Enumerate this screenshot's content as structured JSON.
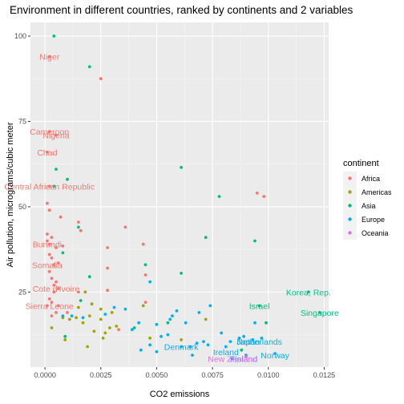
{
  "chart_data": {
    "type": "scatter",
    "title": "Environment in different countries, ranked by continents and 2 variables",
    "xlabel": "CO2 emissions",
    "ylabel": "Air pollution, micrograms/cubic meter",
    "xlim": [
      -0.00065,
      0.0127
    ],
    "ylim": [
      3.0,
      104.0
    ],
    "x_ticks": [
      0.0,
      0.0025,
      0.005,
      0.0075,
      0.01,
      0.0125
    ],
    "x_tick_labels": [
      "0.0000",
      "0.0025",
      "0.0050",
      "0.0075",
      "0.0100",
      "0.0125"
    ],
    "y_ticks": [
      25,
      50,
      75,
      100
    ],
    "y_tick_labels": [
      "25",
      "50",
      "75",
      "100"
    ],
    "grid": true,
    "legend": {
      "title": "continent",
      "position": "right",
      "entries": [
        {
          "name": "Africa",
          "color": "#F8766D"
        },
        {
          "name": "Americas",
          "color": "#A3A500"
        },
        {
          "name": "Asia",
          "color": "#00BF7D"
        },
        {
          "name": "Europe",
          "color": "#00B0F6"
        },
        {
          "name": "Oceania",
          "color": "#E76BF3"
        }
      ]
    },
    "series": [
      {
        "name": "Africa",
        "color": "#F8766D",
        "points": [
          [
            0.0002,
            94.0
          ],
          [
            0.0025,
            87.5
          ],
          [
            0.0002,
            72.0
          ],
          [
            0.0005,
            71.0
          ],
          [
            0.0001,
            66.0
          ],
          [
            0.0002,
            56.0
          ],
          [
            0.0001,
            51.0
          ],
          [
            0.0002,
            49.0
          ],
          [
            0.0007,
            47.0
          ],
          [
            0.0015,
            45.5
          ],
          [
            0.0016,
            43.0
          ],
          [
            0.0036,
            44.0
          ],
          [
            0.0001,
            42.0
          ],
          [
            0.0003,
            41.0
          ],
          [
            0.0002,
            39.0
          ],
          [
            0.0005,
            38.0
          ],
          [
            0.0008,
            38.5
          ],
          [
            0.0044,
            39.0
          ],
          [
            0.0028,
            38.0
          ],
          [
            0.0003,
            35.0
          ],
          [
            0.0004,
            33.0
          ],
          [
            0.0006,
            33.5
          ],
          [
            0.0028,
            32.0
          ],
          [
            0.0002,
            31.0
          ],
          [
            0.0003,
            29.0
          ],
          [
            0.0005,
            28.0
          ],
          [
            0.0006,
            26.0
          ],
          [
            0.0004,
            25.0
          ],
          [
            0.0002,
            23.0
          ],
          [
            0.0003,
            22.0
          ],
          [
            0.0001,
            21.0
          ],
          [
            0.0005,
            19.0
          ],
          [
            0.0003,
            18.0
          ],
          [
            0.0015,
            25.0
          ],
          [
            0.0028,
            25.5
          ],
          [
            0.0045,
            22.0
          ],
          [
            0.001,
            19.0
          ],
          [
            0.0033,
            14.0
          ],
          [
            0.0045,
            30.0
          ],
          [
            0.0095,
            54.0
          ],
          [
            0.0098,
            53.0
          ],
          [
            0.0001,
            40.0
          ],
          [
            0.0002,
            36.0
          ],
          [
            0.0004,
            27.0
          ],
          [
            0.0006,
            21.0
          ]
        ],
        "labels": [
          {
            "text": "Niger",
            "x": 0.0002,
            "y": 94.0
          },
          {
            "text": "Cameroon",
            "x": 0.0002,
            "y": 72.0
          },
          {
            "text": "Nigeria",
            "x": 0.0005,
            "y": 71.0
          },
          {
            "text": "Chad",
            "x": 0.0001,
            "y": 66.0
          },
          {
            "text": "Central African Republic",
            "x": 0.0002,
            "y": 56.0
          },
          {
            "text": "Burundi",
            "x": 0.0001,
            "y": 39.0
          },
          {
            "text": "Somalia",
            "x": 0.0001,
            "y": 33.0
          },
          {
            "text": "Cote d'Ivoire",
            "x": 0.0005,
            "y": 26.0
          },
          {
            "text": "Sierra Leone",
            "x": 0.0002,
            "y": 21.0
          }
        ]
      },
      {
        "name": "Americas",
        "color": "#A3A500",
        "points": [
          [
            0.0003,
            14.5
          ],
          [
            0.0008,
            17.5
          ],
          [
            0.0009,
            11.0
          ],
          [
            0.0011,
            17.0
          ],
          [
            0.0014,
            17.5
          ],
          [
            0.0015,
            20.5
          ],
          [
            0.0018,
            25.0
          ],
          [
            0.0019,
            9.0
          ],
          [
            0.002,
            18.0
          ],
          [
            0.0021,
            21.5
          ],
          [
            0.0022,
            13.5
          ],
          [
            0.0025,
            17.0
          ],
          [
            0.0026,
            11.5
          ],
          [
            0.0027,
            13.0
          ],
          [
            0.0029,
            14.5
          ],
          [
            0.003,
            19.0
          ],
          [
            0.0032,
            15.0
          ],
          [
            0.0044,
            21.0
          ],
          [
            0.0047,
            11.5
          ],
          [
            0.0061,
            11.0
          ],
          [
            0.0072,
            17.0
          ],
          [
            0.0025,
            20.0
          ],
          [
            0.0017,
            16.0
          ]
        ],
        "labels": []
      },
      {
        "name": "Asia",
        "color": "#00BF7D",
        "points": [
          [
            0.0004,
            100.0
          ],
          [
            0.002,
            91.0
          ],
          [
            0.0061,
            61.5
          ],
          [
            0.0005,
            61.0
          ],
          [
            0.001,
            58.0
          ],
          [
            0.0004,
            56.0
          ],
          [
            0.0078,
            53.0
          ],
          [
            0.0015,
            44.0
          ],
          [
            0.0072,
            41.0
          ],
          [
            0.0094,
            40.0
          ],
          [
            0.0008,
            36.5
          ],
          [
            0.0045,
            33.0
          ],
          [
            0.002,
            29.5
          ],
          [
            0.0061,
            30.5
          ],
          [
            0.0118,
            25.0
          ],
          [
            0.0096,
            21.0
          ],
          [
            0.0123,
            19.0
          ],
          [
            0.0016,
            22.5
          ],
          [
            0.004,
            14.5
          ],
          [
            0.0099,
            16.0
          ],
          [
            0.0088,
            8.0
          ],
          [
            0.0055,
            16.0
          ],
          [
            0.0009,
            12.0
          ]
        ],
        "labels": [
          {
            "text": "Korea, Rep.",
            "x": 0.0118,
            "y": 25.0
          },
          {
            "text": "Israel",
            "x": 0.0096,
            "y": 21.0
          },
          {
            "text": "Singapore",
            "x": 0.0123,
            "y": 19.0
          }
        ]
      },
      {
        "name": "Europe",
        "color": "#00B0F6",
        "points": [
          [
            0.0008,
            18.0
          ],
          [
            0.0012,
            18.0
          ],
          [
            0.0017,
            17.5
          ],
          [
            0.0027,
            18.5
          ],
          [
            0.0031,
            20.5
          ],
          [
            0.0036,
            20.0
          ],
          [
            0.0039,
            14.0
          ],
          [
            0.0043,
            8.0
          ],
          [
            0.0047,
            28.0
          ],
          [
            0.005,
            15.5
          ],
          [
            0.0047,
            9.5
          ],
          [
            0.005,
            7.5
          ],
          [
            0.0052,
            12.0
          ],
          [
            0.0055,
            12.5
          ],
          [
            0.0056,
            17.0
          ],
          [
            0.0057,
            18.0
          ],
          [
            0.0059,
            19.5
          ],
          [
            0.0063,
            16.0
          ],
          [
            0.0065,
            9.0
          ],
          [
            0.0066,
            6.5
          ],
          [
            0.0068,
            10.0
          ],
          [
            0.0069,
            19.0
          ],
          [
            0.0071,
            10.5
          ],
          [
            0.0073,
            9.5
          ],
          [
            0.0074,
            21.0
          ],
          [
            0.0079,
            13.0
          ],
          [
            0.0081,
            9.0
          ],
          [
            0.0083,
            10.5
          ],
          [
            0.0087,
            11.5
          ],
          [
            0.0089,
            12.0
          ],
          [
            0.009,
            6.5
          ],
          [
            0.0093,
            11.0
          ],
          [
            0.0094,
            16.0
          ],
          [
            0.0097,
            11.5
          ],
          [
            0.0103,
            7.0
          ],
          [
            0.0061,
            9.0
          ],
          [
            0.0042,
            16.0
          ]
        ],
        "labels": [
          {
            "text": "Denmark",
            "x": 0.0061,
            "y": 9.0
          },
          {
            "text": "Ireland",
            "x": 0.0081,
            "y": 7.5
          },
          {
            "text": "Finland",
            "x": 0.0089,
            "y": 5.5
          },
          {
            "text": "Japan",
            "x": 0.0091,
            "y": 10.5
          },
          {
            "text": "Netherlands",
            "x": 0.0096,
            "y": 10.5
          },
          {
            "text": "Norway",
            "x": 0.0103,
            "y": 6.5
          }
        ]
      },
      {
        "name": "Oceania",
        "color": "#E76BF3",
        "points": [
          [
            0.0084,
            5.5
          ],
          [
            0.009,
            6.0
          ]
        ],
        "labels": [
          {
            "text": "New Zealand",
            "x": 0.0084,
            "y": 5.5
          }
        ]
      }
    ]
  }
}
